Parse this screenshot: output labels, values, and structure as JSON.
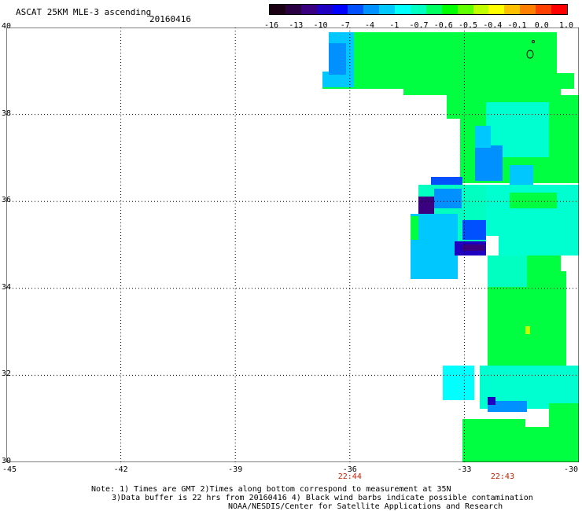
{
  "header": {
    "title": "ASCAT 25KM MLE-3 ascending",
    "date": "20160416"
  },
  "legend": {
    "tick_labels": [
      "-16",
      "-13",
      "-10",
      "-7",
      "-4",
      "-1",
      "-0.7",
      "-0.6",
      "-0.5",
      "-0.4",
      "-0.1",
      "0.0",
      "1.0"
    ],
    "colors": [
      "#1a0012",
      "#2a0040",
      "#3b0080",
      "#2000c0",
      "#0000ff",
      "#0050ff",
      "#0090ff",
      "#00c8ff",
      "#00ffff",
      "#00ffc0",
      "#00ff60",
      "#00ff00",
      "#60ff00",
      "#c0ff00",
      "#ffff00",
      "#ffc000",
      "#ff8000",
      "#ff4000",
      "#ff0000"
    ]
  },
  "map": {
    "lat_labels": [
      "40",
      "38",
      "36",
      "34",
      "32",
      "30"
    ],
    "lon_labels": [
      "-45",
      "-42",
      "-39",
      "-36",
      "-33",
      "-30"
    ],
    "lat_range": [
      30,
      40
    ],
    "lon_range": [
      -45,
      -30
    ],
    "grid": true,
    "time_labels": [
      {
        "lon": -36,
        "text": "22:44"
      },
      {
        "lon": -32,
        "text": "22:43"
      }
    ]
  },
  "notes": {
    "line1": "Note: 1) Times are GMT 2)Times along bottom correspond to measurement at 35N",
    "line2": "3)Data buffer is 22 hrs from 20160416 4) Black wind barbs indicate possible contamination",
    "line3": "NOAA/NESDIS/Center for Satellite Applications and Research"
  }
}
